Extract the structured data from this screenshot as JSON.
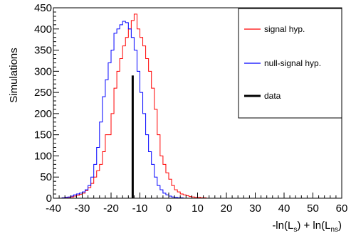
{
  "chart_data": {
    "type": "histogram",
    "title": "",
    "xlabel": {
      "prefix": "-ln(L",
      "sub1": "s",
      "mid": ") + ln(L",
      "sub2": "ns",
      "suffix": ")"
    },
    "ylabel": "Simulations",
    "xlim": [
      -40,
      60
    ],
    "ylim": [
      0,
      450
    ],
    "xticks": [
      -40,
      -30,
      -20,
      -10,
      0,
      10,
      20,
      30,
      40,
      50,
      60
    ],
    "yticks": [
      0,
      50,
      100,
      150,
      200,
      250,
      300,
      350,
      400,
      450
    ],
    "bin_start": -37,
    "bin_width": 1,
    "grid": false,
    "legend_position": "top-right",
    "series": [
      {
        "name": "signal hyp.",
        "color": "#ff0000",
        "values": [
          1,
          2,
          2,
          3,
          5,
          7,
          9,
          12,
          18,
          25,
          35,
          50,
          65,
          80,
          110,
          150,
          150,
          200,
          260,
          300,
          330,
          360,
          380,
          400,
          420,
          435,
          400,
          380,
          360,
          330,
          300,
          260,
          210,
          150,
          100,
          80,
          60,
          45,
          30,
          20,
          15,
          10,
          8,
          6,
          4,
          3,
          2,
          2,
          1,
          1
        ]
      },
      {
        "name": "null-signal hyp.",
        "color": "#0000ff",
        "values": [
          1,
          2,
          3,
          5,
          8,
          10,
          12,
          15,
          20,
          30,
          50,
          80,
          120,
          180,
          240,
          280,
          320,
          350,
          390,
          400,
          410,
          418,
          415,
          400,
          380,
          350,
          300,
          250,
          200,
          150,
          110,
          80,
          50,
          30,
          20,
          12,
          8,
          5,
          3,
          2,
          1,
          1
        ]
      }
    ],
    "data_marker": {
      "name": "data",
      "x": -12.5,
      "y": 290,
      "color": "#000000"
    }
  }
}
